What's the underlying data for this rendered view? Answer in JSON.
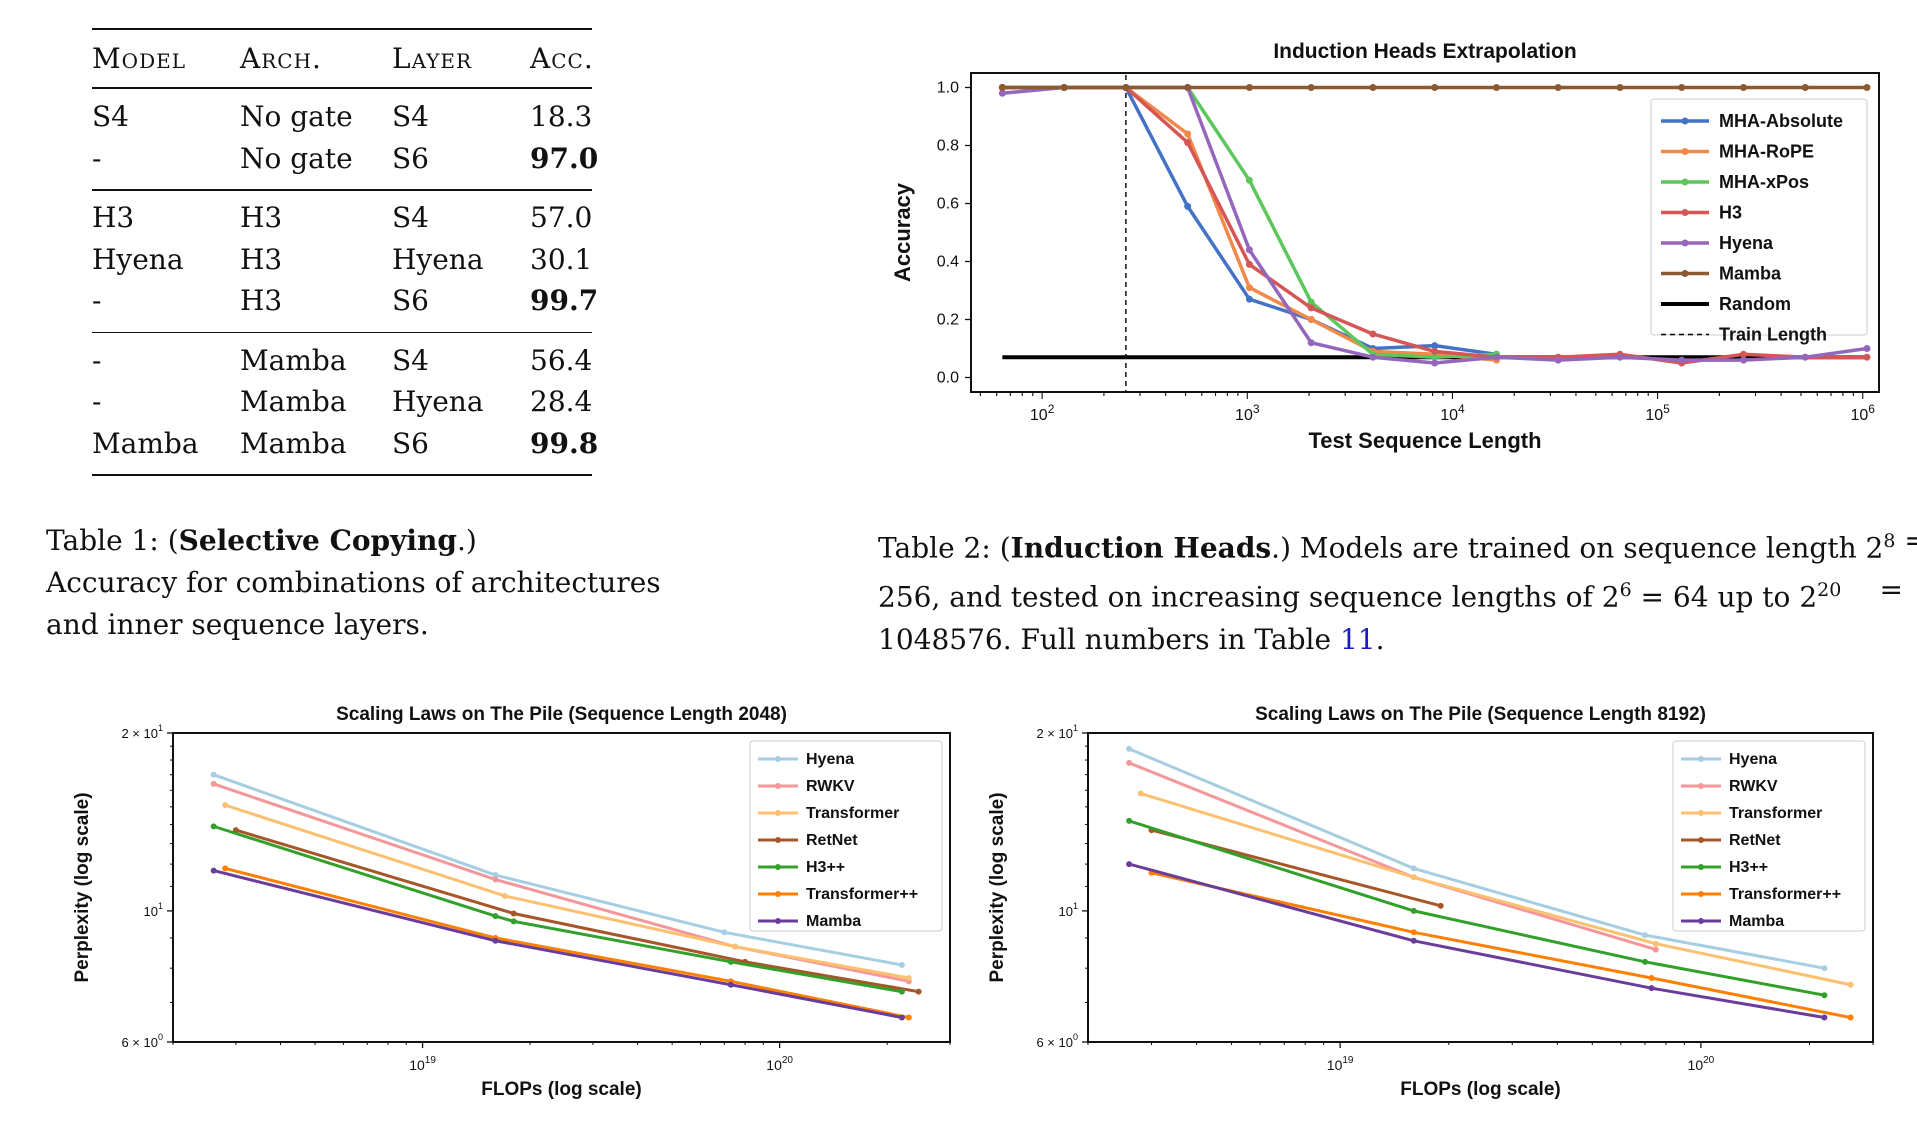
{
  "table1": {
    "headers": [
      "Model",
      "Arch.",
      "Layer",
      "Acc."
    ],
    "groups": [
      [
        [
          "S4",
          "No gate",
          "S4",
          "18.3",
          false
        ],
        [
          "-",
          "No gate",
          "S6",
          "97.0",
          true
        ]
      ],
      [
        [
          "H3",
          "H3",
          "S4",
          "57.0",
          false
        ],
        [
          "Hyena",
          "H3",
          "Hyena",
          "30.1",
          false
        ],
        [
          "-",
          "H3",
          "S6",
          "99.7",
          true
        ]
      ],
      [
        [
          "-",
          "Mamba",
          "S4",
          "56.4",
          false
        ],
        [
          "-",
          "Mamba",
          "Hyena",
          "28.4",
          false
        ],
        [
          "Mamba",
          "Mamba",
          "S6",
          "99.8",
          true
        ]
      ]
    ]
  },
  "caption1": {
    "prefix": "Table 1: (",
    "bold": "Selective Copying",
    "suffix": ".)",
    "line2": "Accuracy for combinations of architectures",
    "line3": "and inner sequence layers."
  },
  "caption2": {
    "prefix": "Table 2: (",
    "bold": "Induction Heads",
    "line1_rest": ".) Models are trained on sequence length 2",
    "exp1": "8",
    "eq1": " = ",
    "line2_a": "256, and tested on increasing sequence lengths of 2",
    "exp2": "6",
    "line2_b": " = 64 up to 2",
    "exp3": "20",
    "line2_c": " =",
    "line3_a": "1048576. Full numbers in Table ",
    "line3_ref": "11",
    "line3_b": "."
  },
  "chart_data": [
    {
      "type": "line",
      "title": "Induction Heads Extrapolation",
      "xlabel": "Test Sequence Length",
      "ylabel": "Accuracy",
      "xscale": "log",
      "xlim": [
        45,
        1200000
      ],
      "ylim": [
        -0.05,
        1.05
      ],
      "yticks": [
        "0.0",
        "0.2",
        "0.4",
        "0.6",
        "0.8",
        "1.0"
      ],
      "xticks": [
        {
          "base": "10",
          "exp": "2",
          "v": 100
        },
        {
          "base": "10",
          "exp": "3",
          "v": 1000
        },
        {
          "base": "10",
          "exp": "4",
          "v": 10000
        },
        {
          "base": "10",
          "exp": "5",
          "v": 100000
        },
        {
          "base": "10",
          "exp": "6",
          "v": 1000000
        }
      ],
      "x": [
        64,
        128,
        256,
        512,
        1024,
        2048,
        4096,
        8192,
        16384,
        32768,
        65536,
        131072,
        262144,
        524288,
        1048576
      ],
      "series": [
        {
          "name": "MHA-Absolute",
          "color": "#4472c4",
          "values": [
            1.0,
            1.0,
            1.0,
            0.59,
            0.27,
            0.2,
            0.1,
            0.11,
            0.08,
            null,
            null,
            null,
            null,
            null,
            null
          ]
        },
        {
          "name": "MHA-RoPE",
          "color": "#f0894a",
          "values": [
            1.0,
            1.0,
            1.0,
            0.84,
            0.31,
            0.2,
            0.09,
            0.08,
            0.06,
            null,
            null,
            null,
            null,
            null,
            null
          ]
        },
        {
          "name": "MHA-xPos",
          "color": "#5cc75c",
          "values": [
            1.0,
            1.0,
            1.0,
            1.0,
            0.68,
            0.26,
            0.08,
            0.07,
            0.08,
            null,
            null,
            null,
            null,
            null,
            null
          ]
        },
        {
          "name": "H3",
          "color": "#d65555",
          "values": [
            1.0,
            1.0,
            1.0,
            0.81,
            0.39,
            0.24,
            0.15,
            0.09,
            0.07,
            0.07,
            0.08,
            0.05,
            0.08,
            0.07,
            0.07
          ]
        },
        {
          "name": "Hyena",
          "color": "#9467bd",
          "values": [
            0.98,
            1.0,
            1.0,
            1.0,
            0.44,
            0.12,
            0.07,
            0.05,
            0.07,
            0.06,
            0.07,
            0.06,
            0.06,
            0.07,
            0.1
          ]
        },
        {
          "name": "Mamba",
          "color": "#8c5a32",
          "values": [
            1.0,
            1.0,
            1.0,
            1.0,
            1.0,
            1.0,
            1.0,
            1.0,
            1.0,
            1.0,
            1.0,
            1.0,
            1.0,
            1.0,
            1.0
          ]
        }
      ],
      "random_level": 0.07,
      "random_label": "Random",
      "train_length": 256,
      "train_label": "Train Length",
      "legend": "center-right"
    },
    {
      "type": "line",
      "title": "Scaling Laws on The Pile (Sequence Length 2048)",
      "xlabel": "FLOPs (log scale)",
      "ylabel": "Perplexity (log scale)",
      "xscale": "log",
      "yscale": "log",
      "xlim": [
        2e+18,
        3e+20
      ],
      "ylim": [
        6,
        20
      ],
      "yticks": [
        {
          "base": "2 × 10",
          "exp": "1",
          "v": 20
        },
        {
          "base": "10",
          "exp": "1",
          "v": 10
        },
        {
          "base": "6 × 10",
          "exp": "0",
          "v": 6
        }
      ],
      "xticks": [
        {
          "base": "10",
          "exp": "19",
          "v": 1e+19
        },
        {
          "base": "10",
          "exp": "20",
          "v": 1e+20
        }
      ],
      "series": [
        {
          "name": "Hyena",
          "color": "#a6cee3",
          "x": [
            2.6e+18,
            1.6e+19,
            7e+19,
            2.2e+20
          ],
          "values": [
            17.0,
            11.5,
            9.2,
            8.1
          ]
        },
        {
          "name": "RWKV",
          "color": "#f4979a",
          "x": [
            2.6e+18,
            1.6e+19,
            7.5e+19,
            2.3e+20
          ],
          "values": [
            16.4,
            11.3,
            8.7,
            7.6
          ]
        },
        {
          "name": "Transformer",
          "color": "#fbc070",
          "x": [
            2.8e+18,
            1.7e+19,
            7.5e+19,
            2.3e+20
          ],
          "values": [
            15.1,
            10.6,
            8.7,
            7.7
          ]
        },
        {
          "name": "RetNet",
          "color": "#a65628",
          "x": [
            3e+18,
            1.8e+19,
            8e+19,
            2.45e+20
          ],
          "values": [
            13.7,
            9.9,
            8.2,
            7.3
          ]
        },
        {
          "name": "H3++",
          "color": "#33a02c",
          "x": [
            2.6e+18,
            1.6e+19,
            1.8e+19,
            7.3e+19,
            2.2e+20
          ],
          "values": [
            13.9,
            9.8,
            9.6,
            8.2,
            7.3
          ]
        },
        {
          "name": "Transformer++",
          "color": "#ff7f00",
          "x": [
            2.8e+18,
            1.6e+19,
            7.3e+19,
            2.3e+20
          ],
          "values": [
            11.8,
            9.0,
            7.6,
            6.6
          ]
        },
        {
          "name": "Mamba",
          "color": "#6a3d9a",
          "x": [
            2.6e+18,
            1.6e+19,
            7.3e+19,
            2.2e+20
          ],
          "values": [
            11.7,
            8.9,
            7.5,
            6.6
          ]
        }
      ],
      "legend": "top-right"
    },
    {
      "type": "line",
      "title": "Scaling Laws on The Pile (Sequence Length 8192)",
      "xlabel": "FLOPs (log scale)",
      "ylabel": "Perplexity (log scale)",
      "xscale": "log",
      "yscale": "log",
      "xlim": [
        2e+18,
        3e+20
      ],
      "ylim": [
        6,
        20
      ],
      "yticks": [
        {
          "base": "2 × 10",
          "exp": "1",
          "v": 20
        },
        {
          "base": "10",
          "exp": "1",
          "v": 10
        },
        {
          "base": "6 × 10",
          "exp": "0",
          "v": 6
        }
      ],
      "xticks": [
        {
          "base": "10",
          "exp": "19",
          "v": 1e+19
        },
        {
          "base": "10",
          "exp": "20",
          "v": 1e+20
        }
      ],
      "series": [
        {
          "name": "Hyena",
          "color": "#a6cee3",
          "x": [
            2.6e+18,
            1.6e+19,
            7e+19,
            2.2e+20
          ],
          "values": [
            18.8,
            11.8,
            9.1,
            8.0
          ]
        },
        {
          "name": "RWKV",
          "color": "#f4979a",
          "x": [
            2.6e+18,
            1.6e+19,
            7.5e+19
          ],
          "values": [
            17.8,
            11.4,
            8.6
          ]
        },
        {
          "name": "Transformer",
          "color": "#fbc070",
          "x": [
            2.8e+18,
            1.6e+19,
            7.5e+19,
            2.6e+20
          ],
          "values": [
            15.8,
            11.4,
            8.8,
            7.5
          ]
        },
        {
          "name": "RetNet",
          "color": "#a65628",
          "x": [
            3e+18,
            1.9e+19
          ],
          "values": [
            13.7,
            10.2
          ]
        },
        {
          "name": "H3++",
          "color": "#33a02c",
          "x": [
            2.6e+18,
            1.6e+19,
            7e+19,
            2.2e+20
          ],
          "values": [
            14.2,
            10.0,
            8.2,
            7.2
          ]
        },
        {
          "name": "Transformer++",
          "color": "#ff7f00",
          "x": [
            3e+18,
            1.6e+19,
            7.3e+19,
            2.6e+20
          ],
          "values": [
            11.6,
            9.2,
            7.7,
            6.6
          ]
        },
        {
          "name": "Mamba",
          "color": "#6a3d9a",
          "x": [
            2.6e+18,
            1.6e+19,
            7.3e+19,
            2.2e+20
          ],
          "values": [
            12.0,
            8.9,
            7.4,
            6.6
          ]
        }
      ],
      "legend": "top-right"
    }
  ]
}
